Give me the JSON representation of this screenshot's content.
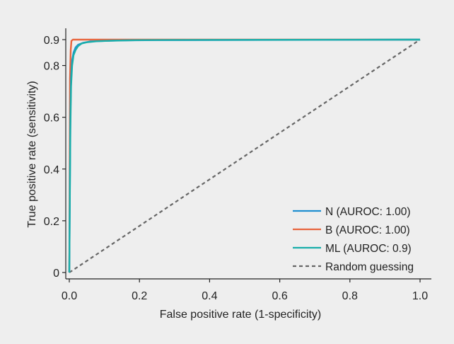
{
  "chart_data": {
    "type": "line",
    "title": "",
    "xlabel": "False positive rate (1-specificity)",
    "ylabel": "True positive rate (sensitivity)",
    "xlim": [
      0.0,
      1.0
    ],
    "ylim": [
      0,
      0.9
    ],
    "x_ticks": [
      0.0,
      0.2,
      0.4,
      0.6,
      0.8,
      1.0
    ],
    "x_tick_labels": [
      "0.0",
      "0.2",
      "0.4",
      "0.6",
      "0.8",
      "1.0"
    ],
    "y_ticks": [
      0,
      0.2,
      0.4,
      0.6,
      0.8,
      0.9
    ],
    "y_tick_labels": [
      "0",
      "0.2",
      "0.4",
      "0.6",
      "0.8",
      "0.9"
    ],
    "grid": false,
    "legend_position": "bottom-right",
    "series": [
      {
        "name": "N (AUROC: 1.00)",
        "color": "#1f8fd1",
        "style": "solid",
        "x": [
          0,
          0.003,
          0.005,
          0.008,
          0.012,
          0.018,
          0.025,
          0.04,
          0.06,
          0.1,
          0.15,
          0.25,
          1.0
        ],
        "y": [
          0,
          0.6,
          0.75,
          0.82,
          0.85,
          0.87,
          0.88,
          0.888,
          0.893,
          0.895,
          0.897,
          0.898,
          0.9
        ]
      },
      {
        "name": "B (AUROC: 1.00)",
        "color": "#e8643c",
        "style": "solid",
        "x": [
          0,
          0.002,
          0.004,
          0.006,
          0.01,
          0.02,
          0.05,
          0.2,
          1.0
        ],
        "y": [
          0,
          0.75,
          0.86,
          0.895,
          0.9,
          0.9,
          0.9,
          0.9,
          0.9
        ]
      },
      {
        "name": "ML (AUROC: 0.9)",
        "color": "#1aaeaa",
        "style": "solid",
        "x": [
          0,
          0.003,
          0.005,
          0.008,
          0.012,
          0.018,
          0.025,
          0.035,
          0.05,
          0.08,
          0.12,
          0.2,
          0.3,
          1.0
        ],
        "y": [
          0,
          0.55,
          0.72,
          0.8,
          0.84,
          0.86,
          0.875,
          0.885,
          0.89,
          0.894,
          0.896,
          0.898,
          0.899,
          0.9
        ]
      },
      {
        "name": "Random guessing",
        "color": "#666666",
        "style": "dashed",
        "x": [
          0,
          1.0
        ],
        "y": [
          0,
          0.9
        ]
      }
    ]
  }
}
